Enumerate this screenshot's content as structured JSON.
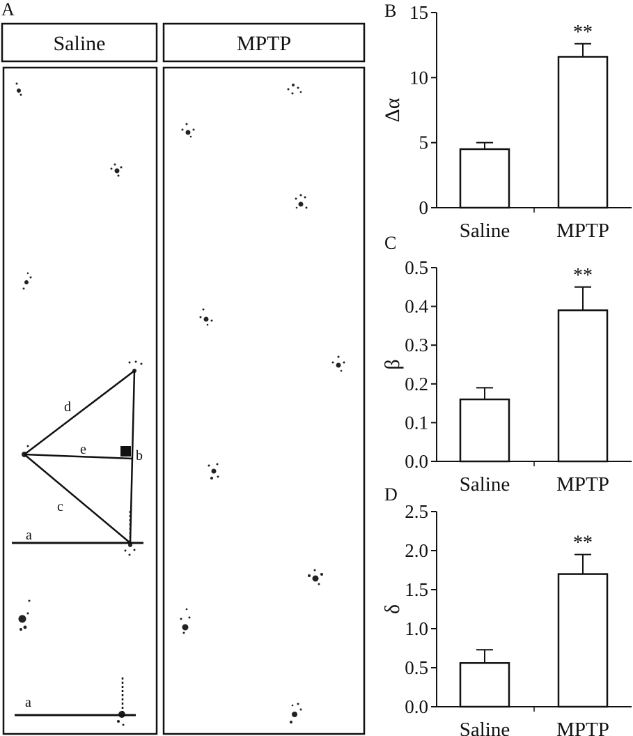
{
  "panel_a": {
    "letter": "A",
    "saline_label": "Saline",
    "mptp_label": "MPTP",
    "diagram_labels": {
      "a": "a",
      "b": "b",
      "c": "c",
      "d": "d",
      "e": "e"
    }
  },
  "chart_data": [
    {
      "panel": "B",
      "type": "bar",
      "categories": [
        "Saline",
        "MPTP"
      ],
      "values": [
        4.5,
        11.6
      ],
      "errors": [
        0.5,
        1.0
      ],
      "ylabel": "Δα",
      "ylim": [
        0,
        15
      ],
      "yticks": [
        "0",
        "5",
        "10",
        "15"
      ],
      "tick_values": [
        0,
        5,
        10,
        15
      ],
      "significance": [
        "",
        "**"
      ]
    },
    {
      "panel": "C",
      "type": "bar",
      "categories": [
        "Saline",
        "MPTP"
      ],
      "values": [
        0.16,
        0.39
      ],
      "errors": [
        0.03,
        0.06
      ],
      "ylabel": "β",
      "ylim": [
        0,
        0.5
      ],
      "yticks": [
        "0.0",
        "0.1",
        "0.2",
        "0.3",
        "0.4",
        "0.5"
      ],
      "tick_values": [
        0,
        0.1,
        0.2,
        0.3,
        0.4,
        0.5
      ],
      "significance": [
        "",
        "**"
      ]
    },
    {
      "panel": "D",
      "type": "bar",
      "categories": [
        "Saline",
        "MPTP"
      ],
      "values": [
        0.56,
        1.7
      ],
      "errors": [
        0.17,
        0.25
      ],
      "ylabel": "δ",
      "ylim": [
        0,
        2.5
      ],
      "yticks": [
        "0.0",
        "0.5",
        "1.0",
        "1.5",
        "2.0",
        "2.5"
      ],
      "tick_values": [
        0,
        0.5,
        1.0,
        1.5,
        2.0,
        2.5
      ],
      "significance": [
        "",
        "**"
      ]
    }
  ]
}
